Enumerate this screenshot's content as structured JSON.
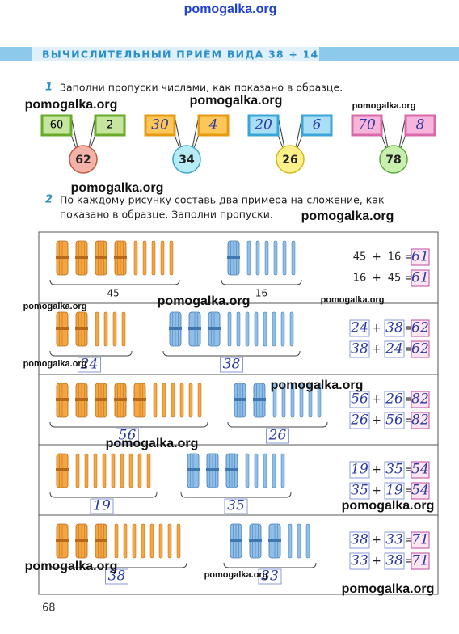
{
  "header": {
    "title": "ВЫЧИСЛИТЕЛЬНЫЙ ПРИЁМ ВИДА 38 + 14"
  },
  "task1": {
    "number": "1",
    "text": "Заполни пропуски числами, как показано в образце.",
    "pairs": [
      {
        "a": 60,
        "b": 2,
        "sum": 62
      },
      {
        "a": 30,
        "b": 4,
        "sum": 34
      },
      {
        "a": 20,
        "b": 6,
        "sum": 26
      },
      {
        "a": 70,
        "b": 8,
        "sum": 78
      }
    ]
  },
  "task2": {
    "number": "2",
    "text_line1": "По каждому рисунку составь два примера на сложение, как",
    "text_line2": "показано в образце. Заполни пропуски.",
    "plus": "+",
    "equals": "=",
    "rows": [
      {
        "a": 45,
        "b": 16,
        "sum": 61
      },
      {
        "a": 24,
        "b": 38,
        "sum": 62
      },
      {
        "a": 56,
        "b": 26,
        "sum": 82
      },
      {
        "a": 19,
        "b": 35,
        "sum": 54
      },
      {
        "a": 38,
        "b": 33,
        "sum": 71
      }
    ]
  },
  "page_number": "68",
  "watermarks": [
    "pomogalka.org",
    "pomogalka.org",
    "pomogalka.org",
    "pomogalka.org",
    "pomogalka.org",
    "pomogalka.org",
    "pomogalka.org",
    "pomogalka.org",
    "pomogalka.org",
    "pomogalka.org",
    "pomogalka.org",
    "pomogalka.org",
    "pomogalka.org",
    "pomogalka.org",
    "pomogalka.org",
    "pomogalka.org"
  ]
}
